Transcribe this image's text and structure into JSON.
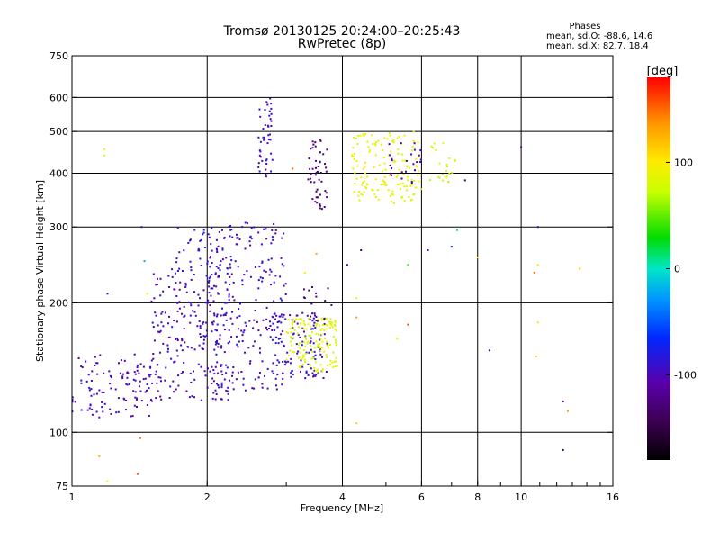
{
  "chart_data": {
    "type": "scatter",
    "title": "Tromsø 20130125 20:24:00–20:25:43",
    "subtitle": "RwPretec (8p)",
    "xlabel": "Frequency [MHz]",
    "ylabel": "Stationary phase Virtual Height [km]",
    "x_scale": "log",
    "y_scale": "log",
    "xlim": [
      1,
      16
    ],
    "ylim": [
      75,
      750
    ],
    "x_ticks": [
      1,
      2,
      4,
      6,
      8,
      10,
      16
    ],
    "x_tick_labels": [
      "1",
      "2",
      "4",
      "6",
      "8",
      "10",
      "16"
    ],
    "x_grid": [
      1,
      2,
      4,
      6,
      8,
      10
    ],
    "y_ticks": [
      75,
      100,
      200,
      300,
      400,
      500,
      600,
      750
    ],
    "y_tick_labels": [
      "75",
      "100",
      "200",
      "300",
      "400",
      "500",
      "600",
      "750"
    ],
    "y_grid": [
      100,
      200,
      300,
      400,
      500,
      600
    ],
    "grid": true,
    "stats": {
      "heading": "Phases",
      "line_o": "mean, sd,O: -88.6, 14.6",
      "line_x": "mean, sd,X:  82.7, 18.4"
    },
    "colorbar": {
      "label": "[deg]",
      "range": [
        -180,
        180
      ],
      "ticks": [
        100,
        0,
        -100
      ],
      "tick_labels": [
        "100",
        "0",
        "-100"
      ],
      "colormap": "rainbow (black-purple-blue-cyan-green-yellow-orange-red)"
    },
    "clusters": [
      {
        "f": [
          1.0,
          1.5
        ],
        "h": [
          108,
          152
        ],
        "phase": -100,
        "n": 110
      },
      {
        "f": [
          1.5,
          2.3
        ],
        "h": [
          118,
          240
        ],
        "phase": -100,
        "n": 230
      },
      {
        "f": [
          2.0,
          3.0
        ],
        "h": [
          125,
          310
        ],
        "phase": -95,
        "n": 230
      },
      {
        "f": [
          1.7,
          2.2
        ],
        "h": [
          230,
          300
        ],
        "phase": -88,
        "n": 40
      },
      {
        "f": [
          2.6,
          2.8
        ],
        "h": [
          390,
          600
        ],
        "phase": -95,
        "n": 45
      },
      {
        "f": [
          2.8,
          3.7
        ],
        "h": [
          133,
          190
        ],
        "phase": -92,
        "n": 110
      },
      {
        "f": [
          3.0,
          3.9
        ],
        "h": [
          138,
          185
        ],
        "phase": 85,
        "n": 150
      },
      {
        "f": [
          3.35,
          3.7
        ],
        "h": [
          330,
          480
        ],
        "phase": -125,
        "n": 50
      },
      {
        "f": [
          3.2,
          3.8
        ],
        "h": [
          180,
          220
        ],
        "phase": -125,
        "n": 16
      },
      {
        "f": [
          4.2,
          6.0
        ],
        "h": [
          340,
          500
        ],
        "phase": 88,
        "n": 150
      },
      {
        "f": [
          5.0,
          6.0
        ],
        "h": [
          380,
          470
        ],
        "phase": -110,
        "n": 25
      },
      {
        "f": [
          6.2,
          7.2
        ],
        "h": [
          370,
          470
        ],
        "phase": 80,
        "n": 22
      }
    ],
    "outliers": [
      {
        "f": 1.18,
        "h": 455,
        "phase": 85
      },
      {
        "f": 1.18,
        "h": 440,
        "phase": 85
      },
      {
        "f": 1.15,
        "h": 88,
        "phase": 130
      },
      {
        "f": 1.2,
        "h": 77,
        "phase": 100
      },
      {
        "f": 1.4,
        "h": 80,
        "phase": 160
      },
      {
        "f": 1.42,
        "h": 97,
        "phase": 150
      },
      {
        "f": 1.2,
        "h": 210,
        "phase": -100
      },
      {
        "f": 1.45,
        "h": 250,
        "phase": -20
      },
      {
        "f": 1.47,
        "h": 210,
        "phase": 100
      },
      {
        "f": 1.43,
        "h": 300,
        "phase": -100
      },
      {
        "f": 3.5,
        "h": 260,
        "phase": 130
      },
      {
        "f": 3.3,
        "h": 235,
        "phase": 100
      },
      {
        "f": 3.1,
        "h": 410,
        "phase": 150
      },
      {
        "f": 4.3,
        "h": 105,
        "phase": 110
      },
      {
        "f": 4.3,
        "h": 185,
        "phase": 130
      },
      {
        "f": 4.1,
        "h": 245,
        "phase": -110
      },
      {
        "f": 4.4,
        "h": 265,
        "phase": -130
      },
      {
        "f": 5.3,
        "h": 165,
        "phase": 80
      },
      {
        "f": 5.6,
        "h": 178,
        "phase": 160
      },
      {
        "f": 4.3,
        "h": 205,
        "phase": 90
      },
      {
        "f": 5.6,
        "h": 245,
        "phase": 40
      },
      {
        "f": 6.2,
        "h": 265,
        "phase": -80
      },
      {
        "f": 7.0,
        "h": 270,
        "phase": -60
      },
      {
        "f": 7.2,
        "h": 295,
        "phase": 10
      },
      {
        "f": 7.5,
        "h": 385,
        "phase": -130
      },
      {
        "f": 8.0,
        "h": 255,
        "phase": 100
      },
      {
        "f": 10.0,
        "h": 460,
        "phase": -115
      },
      {
        "f": 8.5,
        "h": 155,
        "phase": -100
      },
      {
        "f": 10.7,
        "h": 235,
        "phase": 150
      },
      {
        "f": 10.9,
        "h": 245,
        "phase": 80
      },
      {
        "f": 10.9,
        "h": 180,
        "phase": 90
      },
      {
        "f": 10.8,
        "h": 150,
        "phase": 110
      },
      {
        "f": 10.9,
        "h": 300,
        "phase": -100
      },
      {
        "f": 13.5,
        "h": 240,
        "phase": 120
      },
      {
        "f": 12.4,
        "h": 118,
        "phase": -110
      },
      {
        "f": 12.7,
        "h": 112,
        "phase": 130
      },
      {
        "f": 12.4,
        "h": 91,
        "phase": -150
      }
    ]
  }
}
